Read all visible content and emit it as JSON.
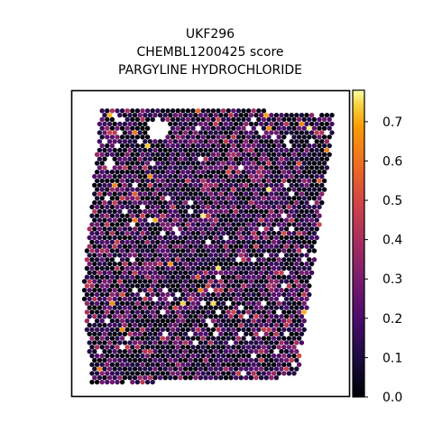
{
  "chart_data": {
    "type": "heatmap",
    "title_lines": [
      "UKF296",
      "CHEMBL1200425 score",
      "PARGYLINE HYDROCHLORIDE"
    ],
    "colormap": "inferno",
    "colorbar": {
      "range": [
        0.0,
        0.78
      ],
      "ticks": [
        "0.0",
        "0.1",
        "0.2",
        "0.3",
        "0.4",
        "0.5",
        "0.6",
        "0.7"
      ],
      "tick_values": [
        0.0,
        0.1,
        0.2,
        0.3,
        0.4,
        0.5,
        0.6,
        0.7
      ]
    },
    "value_distribution": {
      "min": 0.0,
      "max": 0.78,
      "typical_range": [
        0.0,
        0.35
      ]
    },
    "spatial_shape": "slanted square tissue section with a hole near the top",
    "xlabel": "",
    "ylabel": "",
    "grid": false
  },
  "colors": {
    "frame": "#000000",
    "background": "#ffffff"
  }
}
